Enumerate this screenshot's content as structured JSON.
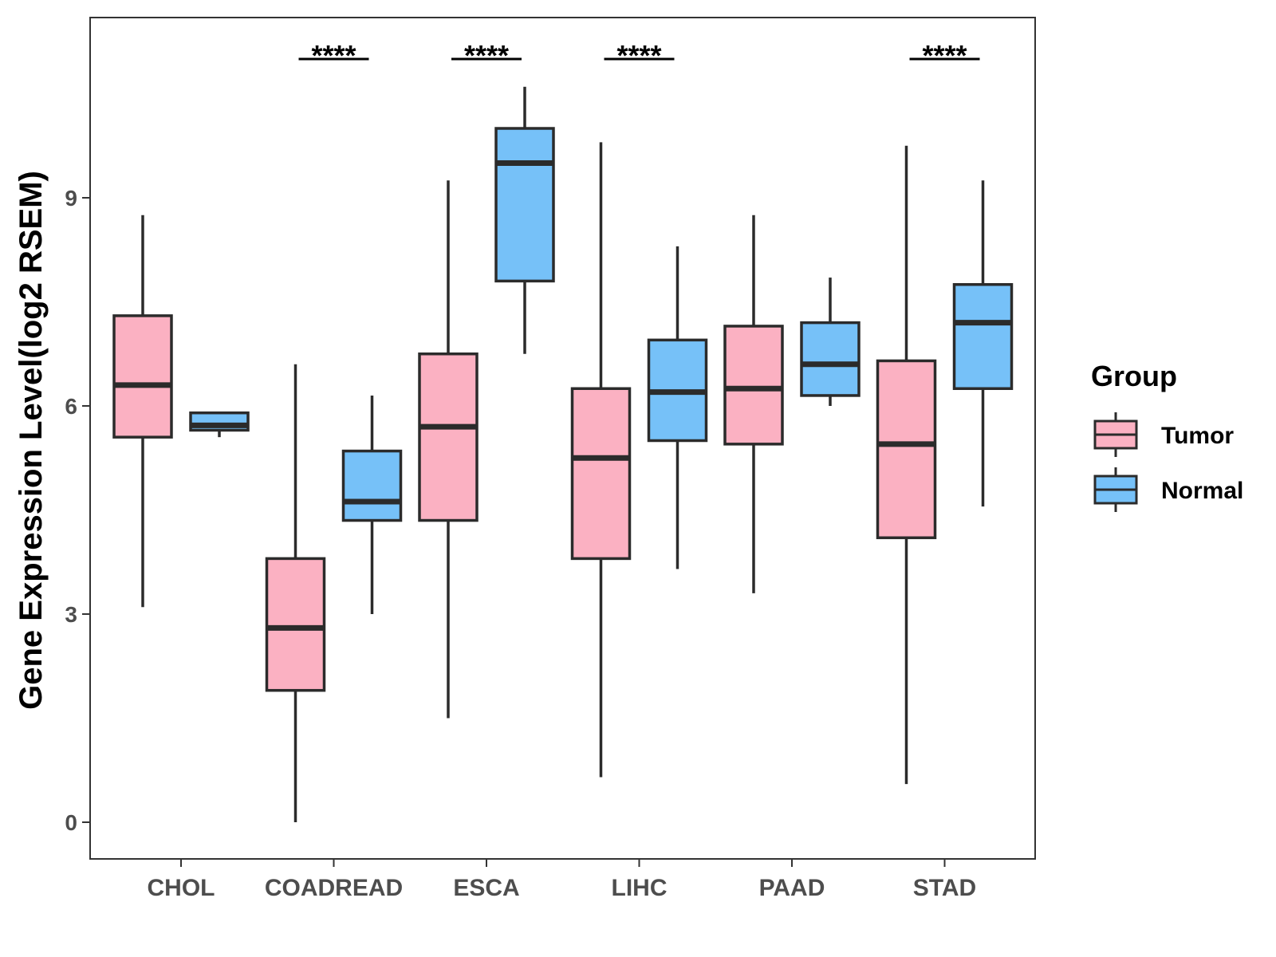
{
  "chart_data": {
    "type": "boxplot",
    "title": "",
    "xlabel": "",
    "ylabel": "Gene Expression Level(log2 RSEM)",
    "ylim": [
      -0.55,
      11.6
    ],
    "yticks": [
      {
        "value": 0,
        "label": "0"
      },
      {
        "value": 3,
        "label": "3"
      },
      {
        "value": 6,
        "label": "6"
      },
      {
        "value": 9,
        "label": "9"
      }
    ],
    "categories": [
      "CHOL",
      "COADREAD",
      "ESCA",
      "LIHC",
      "PAAD",
      "STAD"
    ],
    "legend": {
      "title": "Group",
      "position": "right",
      "entries": [
        "Tumor",
        "Normal"
      ]
    },
    "colors": {
      "Tumor": "#FBB1C2",
      "Normal": "#76C1F8",
      "stroke": "#2b2b2b"
    },
    "series": [
      {
        "name": "Tumor",
        "boxes": [
          {
            "min": 3.1,
            "q1": 5.55,
            "median": 6.3,
            "q3": 7.3,
            "max": 8.75
          },
          {
            "min": 0.0,
            "q1": 1.9,
            "median": 2.8,
            "q3": 3.8,
            "max": 6.6
          },
          {
            "min": 1.5,
            "q1": 4.35,
            "median": 5.7,
            "q3": 6.75,
            "max": 9.25
          },
          {
            "min": 0.65,
            "q1": 3.8,
            "median": 5.25,
            "q3": 6.25,
            "max": 9.8
          },
          {
            "min": 3.3,
            "q1": 5.45,
            "median": 6.25,
            "q3": 7.15,
            "max": 8.75
          },
          {
            "min": 0.55,
            "q1": 4.1,
            "median": 5.45,
            "q3": 6.65,
            "max": 9.75
          }
        ]
      },
      {
        "name": "Normal",
        "boxes": [
          {
            "min": 5.55,
            "q1": 5.65,
            "median": 5.72,
            "q3": 5.9,
            "max": 5.9
          },
          {
            "min": 3.0,
            "q1": 4.35,
            "median": 4.62,
            "q3": 5.35,
            "max": 6.15
          },
          {
            "min": 6.75,
            "q1": 7.8,
            "median": 9.5,
            "q3": 10.0,
            "max": 10.6
          },
          {
            "min": 3.65,
            "q1": 5.5,
            "median": 6.2,
            "q3": 6.95,
            "max": 8.3
          },
          {
            "min": 6.0,
            "q1": 6.15,
            "median": 6.6,
            "q3": 7.2,
            "max": 7.85
          },
          {
            "min": 4.55,
            "q1": 6.25,
            "median": 7.2,
            "q3": 7.75,
            "max": 9.25
          }
        ]
      }
    ],
    "significance": [
      {
        "category": "COADREAD",
        "label": "****"
      },
      {
        "category": "ESCA",
        "label": "****"
      },
      {
        "category": "LIHC",
        "label": "****"
      },
      {
        "category": "STAD",
        "label": "****"
      }
    ]
  }
}
